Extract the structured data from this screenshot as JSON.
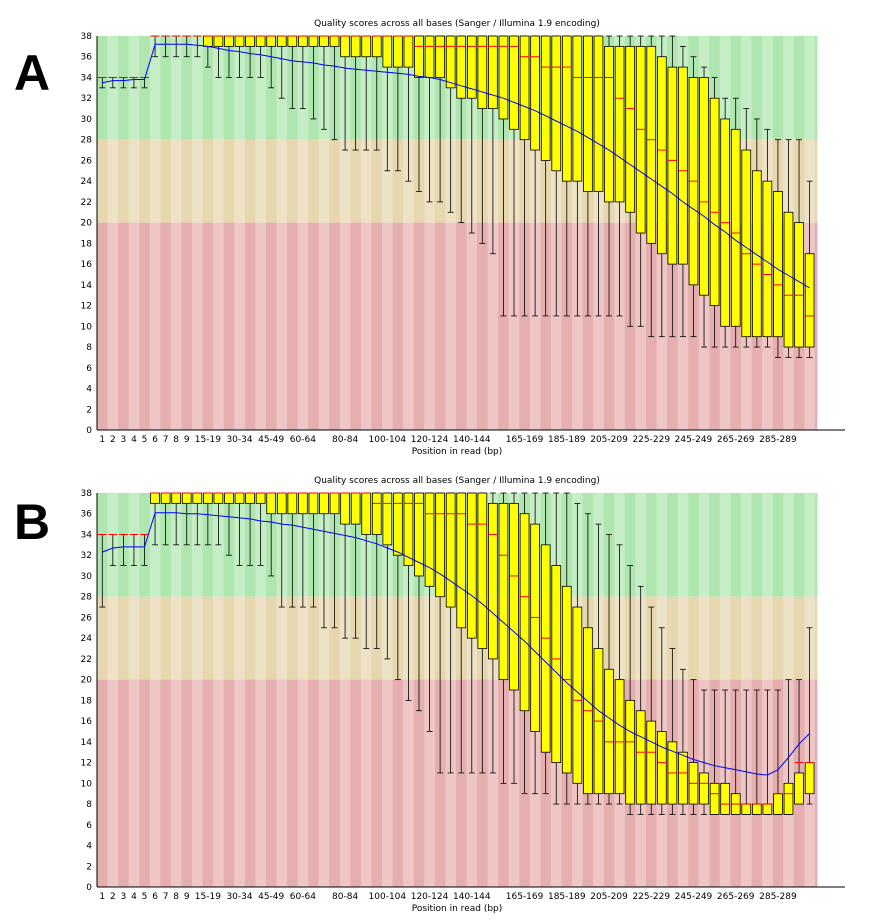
{
  "panels": [
    {
      "label": "A"
    },
    {
      "label": "B"
    }
  ],
  "colors": {
    "green_a": "#afe6af",
    "green_b": "#c6eec6",
    "orange_a": "#e6d7af",
    "orange_b": "#eee2c6",
    "red_a": "#e6afaf",
    "red_b": "#eec6c6",
    "box": "#ffff00",
    "box_edge": "#000000",
    "median": "#ff0000",
    "mean": "#0000ff",
    "whisker": "#000000"
  },
  "chart_data": [
    {
      "type": "boxplot",
      "panel": "A",
      "title": "Quality scores across all bases (Sanger / Illumina 1.9 encoding)",
      "xlabel": "Position in read (bp)",
      "ylabel": "",
      "ylim": [
        0,
        38
      ],
      "yticks": [
        0,
        2,
        4,
        6,
        8,
        10,
        12,
        14,
        16,
        18,
        20,
        22,
        24,
        26,
        28,
        30,
        32,
        34,
        36,
        38
      ],
      "bands": [
        {
          "from": 28,
          "to": 38,
          "color": "green"
        },
        {
          "from": 20,
          "to": 28,
          "color": "orange"
        },
        {
          "from": 0,
          "to": 20,
          "color": "red"
        }
      ],
      "categories": [
        "1",
        "2",
        "3",
        "4",
        "5",
        "6",
        "7",
        "8",
        "9",
        "10-14",
        "15-19",
        "20-24",
        "25-29",
        "30-34",
        "35-39",
        "40-44",
        "45-49",
        "50-54",
        "55-59",
        "60-64",
        "65-69",
        "70-74",
        "75-79",
        "80-84",
        "85-89",
        "90-94",
        "95-99",
        "100-104",
        "105-109",
        "110-114",
        "115-119",
        "120-124",
        "125-129",
        "130-134",
        "135-139",
        "140-144",
        "145-149",
        "150-154",
        "155-159",
        "160-164",
        "165-169",
        "170-174",
        "175-179",
        "180-184",
        "185-189",
        "190-194",
        "195-199",
        "200-204",
        "205-209",
        "210-214",
        "215-219",
        "220-224",
        "225-229",
        "230-234",
        "235-239",
        "240-244",
        "245-249",
        "250-254",
        "255-259",
        "260-264",
        "265-269",
        "270-274",
        "275-279",
        "280-284",
        "285-289",
        "290-294",
        "295-299",
        "300-301"
      ],
      "shown_tick_labels": [
        "1",
        "2",
        "3",
        "4",
        "5",
        "6",
        "7",
        "8",
        "9",
        "15-19",
        "30-34",
        "45-49",
        "60-64",
        "80-84",
        "100-104",
        "120-124",
        "140-144",
        "165-169",
        "185-189",
        "205-209",
        "225-229",
        "245-249",
        "265-269",
        "285-289"
      ],
      "series": [
        {
          "name": "lower_whisker",
          "values": [
            33,
            33,
            33,
            33,
            33,
            36,
            36,
            36,
            36,
            36,
            35,
            34,
            34,
            34,
            34,
            34,
            33,
            32,
            31,
            31,
            30,
            29,
            28,
            27,
            27,
            27,
            27,
            25,
            25,
            24,
            23,
            22,
            22,
            21,
            20,
            19,
            18,
            17,
            11,
            11,
            11,
            11,
            11,
            11,
            11,
            11,
            11,
            11,
            11,
            11,
            10,
            10,
            9,
            9,
            9,
            9,
            9,
            8,
            8,
            8,
            8,
            8,
            8,
            8,
            7,
            7,
            7,
            7
          ]
        },
        {
          "name": "q1",
          "values": [
            34,
            34,
            34,
            34,
            34,
            38,
            38,
            38,
            38,
            38,
            37,
            37,
            37,
            37,
            37,
            37,
            37,
            37,
            37,
            37,
            37,
            37,
            37,
            36,
            36,
            36,
            36,
            35,
            35,
            35,
            34,
            34,
            34,
            33,
            32,
            32,
            31,
            31,
            30,
            29,
            28,
            27,
            26,
            25,
            24,
            24,
            23,
            23,
            22,
            22,
            21,
            19,
            18,
            17,
            16,
            16,
            14,
            13,
            12,
            10,
            10,
            9,
            9,
            9,
            9,
            8,
            8,
            8
          ]
        },
        {
          "name": "median",
          "values": [
            34,
            34,
            34,
            34,
            34,
            38,
            38,
            38,
            38,
            38,
            38,
            38,
            38,
            38,
            38,
            38,
            38,
            38,
            38,
            38,
            38,
            38,
            38,
            38,
            38,
            38,
            38,
            38,
            38,
            38,
            37,
            37,
            37,
            37,
            37,
            37,
            37,
            37,
            37,
            37,
            36,
            36,
            35,
            35,
            35,
            34,
            34,
            34,
            34,
            32,
            31,
            29,
            28,
            27,
            26,
            25,
            24,
            22,
            21,
            20,
            19,
            17,
            16,
            15,
            14,
            13,
            13,
            11
          ]
        },
        {
          "name": "q3",
          "values": [
            34,
            34,
            34,
            34,
            34,
            38,
            38,
            38,
            38,
            38,
            38,
            38,
            38,
            38,
            38,
            38,
            38,
            38,
            38,
            38,
            38,
            38,
            38,
            38,
            38,
            38,
            38,
            38,
            38,
            38,
            38,
            38,
            38,
            38,
            38,
            38,
            38,
            38,
            38,
            38,
            38,
            38,
            38,
            38,
            38,
            38,
            38,
            38,
            37,
            37,
            37,
            37,
            37,
            36,
            35,
            35,
            34,
            34,
            32,
            30,
            29,
            27,
            25,
            24,
            23,
            21,
            20,
            17
          ]
        },
        {
          "name": "upper_whisker",
          "values": [
            34,
            34,
            34,
            34,
            34,
            38,
            38,
            38,
            38,
            38,
            38,
            38,
            38,
            38,
            38,
            38,
            38,
            38,
            38,
            38,
            38,
            38,
            38,
            38,
            38,
            38,
            38,
            38,
            38,
            38,
            38,
            38,
            38,
            38,
            38,
            38,
            38,
            38,
            38,
            38,
            38,
            38,
            38,
            38,
            38,
            38,
            38,
            38,
            38,
            38,
            38,
            38,
            38,
            38,
            38,
            37,
            36,
            35,
            34,
            32,
            32,
            31,
            30,
            29,
            28,
            28,
            28,
            24
          ]
        },
        {
          "name": "mean",
          "values": [
            33.5,
            33.7,
            33.7,
            33.8,
            33.8,
            37.2,
            37.2,
            37.2,
            37.2,
            37.1,
            37.0,
            36.8,
            36.6,
            36.5,
            36.3,
            36.2,
            36.0,
            35.8,
            35.6,
            35.5,
            35.4,
            35.2,
            35.1,
            34.9,
            34.8,
            34.7,
            34.6,
            34.5,
            34.4,
            34.3,
            34.1,
            34.0,
            33.8,
            33.5,
            33.2,
            32.9,
            32.6,
            32.3,
            32.0,
            31.6,
            31.2,
            30.8,
            30.3,
            29.8,
            29.3,
            28.8,
            28.2,
            27.6,
            27.0,
            26.3,
            25.6,
            24.9,
            24.2,
            23.5,
            22.8,
            22.0,
            21.3,
            20.6,
            19.8,
            19.1,
            18.3,
            17.6,
            16.9,
            16.2,
            15.5,
            14.9,
            14.3,
            13.7
          ]
        }
      ]
    },
    {
      "type": "boxplot",
      "panel": "B",
      "title": "Quality scores across all bases (Sanger / Illumina 1.9 encoding)",
      "xlabel": "Position in read (bp)",
      "ylabel": "",
      "ylim": [
        0,
        38
      ],
      "yticks": [
        0,
        2,
        4,
        6,
        8,
        10,
        12,
        14,
        16,
        18,
        20,
        22,
        24,
        26,
        28,
        30,
        32,
        34,
        36,
        38
      ],
      "bands": [
        {
          "from": 28,
          "to": 38,
          "color": "green"
        },
        {
          "from": 20,
          "to": 28,
          "color": "orange"
        },
        {
          "from": 0,
          "to": 20,
          "color": "red"
        }
      ],
      "categories": [
        "1",
        "2",
        "3",
        "4",
        "5",
        "6",
        "7",
        "8",
        "9",
        "10-14",
        "15-19",
        "20-24",
        "25-29",
        "30-34",
        "35-39",
        "40-44",
        "45-49",
        "50-54",
        "55-59",
        "60-64",
        "65-69",
        "70-74",
        "75-79",
        "80-84",
        "85-89",
        "90-94",
        "95-99",
        "100-104",
        "105-109",
        "110-114",
        "115-119",
        "120-124",
        "125-129",
        "130-134",
        "135-139",
        "140-144",
        "145-149",
        "150-154",
        "155-159",
        "160-164",
        "165-169",
        "170-174",
        "175-179",
        "180-184",
        "185-189",
        "190-194",
        "195-199",
        "200-204",
        "205-209",
        "210-214",
        "215-219",
        "220-224",
        "225-229",
        "230-234",
        "235-239",
        "240-244",
        "245-249",
        "250-254",
        "255-259",
        "260-264",
        "265-269",
        "270-274",
        "275-279",
        "280-284",
        "285-289",
        "290-294",
        "295-299",
        "300-301"
      ],
      "shown_tick_labels": [
        "1",
        "2",
        "3",
        "4",
        "5",
        "6",
        "7",
        "8",
        "9",
        "15-19",
        "30-34",
        "45-49",
        "60-64",
        "80-84",
        "100-104",
        "120-124",
        "140-144",
        "165-169",
        "185-189",
        "205-209",
        "225-229",
        "245-249",
        "265-269",
        "285-289"
      ],
      "series": [
        {
          "name": "lower_whisker",
          "values": [
            27,
            31,
            31,
            31,
            31,
            33,
            33,
            33,
            33,
            33,
            33,
            33,
            32,
            31,
            31,
            31,
            30,
            27,
            27,
            27,
            27,
            25,
            25,
            24,
            24,
            23,
            23,
            22,
            20,
            18,
            17,
            15,
            11,
            11,
            11,
            11,
            11,
            11,
            10,
            10,
            9,
            9,
            9,
            8,
            8,
            8,
            8,
            8,
            8,
            8,
            7,
            7,
            7,
            7,
            7,
            7,
            7,
            7,
            7,
            7,
            7,
            7,
            7,
            7,
            7,
            7,
            8,
            8
          ]
        },
        {
          "name": "q1",
          "values": [
            34,
            34,
            34,
            34,
            34,
            37,
            37,
            37,
            37,
            37,
            37,
            37,
            37,
            37,
            37,
            37,
            36,
            36,
            36,
            36,
            36,
            36,
            36,
            35,
            35,
            34,
            34,
            33,
            32,
            31,
            30,
            29,
            28,
            27,
            25,
            24,
            23,
            22,
            20,
            19,
            17,
            15,
            13,
            12,
            11,
            10,
            9,
            9,
            9,
            9,
            8,
            8,
            8,
            8,
            8,
            8,
            8,
            8,
            7,
            7,
            7,
            7,
            7,
            7,
            7,
            7,
            8,
            9
          ]
        },
        {
          "name": "median",
          "values": [
            34,
            34,
            34,
            34,
            34,
            38,
            38,
            38,
            38,
            38,
            38,
            38,
            38,
            38,
            38,
            38,
            38,
            38,
            38,
            38,
            38,
            38,
            38,
            38,
            38,
            38,
            37,
            37,
            37,
            37,
            37,
            36,
            36,
            36,
            36,
            35,
            35,
            34,
            32,
            30,
            28,
            26,
            24,
            22,
            20,
            18,
            17,
            16,
            14,
            14,
            14,
            13,
            13,
            12,
            11,
            11,
            10,
            10,
            9,
            8,
            8,
            8,
            8,
            8,
            9,
            9,
            12,
            12
          ]
        },
        {
          "name": "q3",
          "values": [
            34,
            34,
            34,
            34,
            34,
            38,
            38,
            38,
            38,
            38,
            38,
            38,
            38,
            38,
            38,
            38,
            38,
            38,
            38,
            38,
            38,
            38,
            38,
            38,
            38,
            38,
            38,
            38,
            38,
            38,
            38,
            38,
            38,
            38,
            38,
            38,
            38,
            37,
            37,
            37,
            36,
            35,
            33,
            31,
            29,
            27,
            25,
            23,
            21,
            20,
            18,
            17,
            16,
            15,
            14,
            13,
            12,
            11,
            10,
            10,
            9,
            8,
            8,
            8,
            9,
            10,
            11,
            12
          ]
        },
        {
          "name": "upper_whisker",
          "values": [
            34,
            34,
            34,
            34,
            34,
            38,
            38,
            38,
            38,
            38,
            38,
            38,
            38,
            38,
            38,
            38,
            38,
            38,
            38,
            38,
            38,
            38,
            38,
            38,
            38,
            38,
            38,
            38,
            38,
            38,
            38,
            38,
            38,
            38,
            38,
            38,
            38,
            38,
            38,
            38,
            38,
            38,
            38,
            38,
            38,
            37,
            36,
            35,
            34,
            33,
            31,
            29,
            27,
            25,
            23,
            21,
            20,
            19,
            19,
            19,
            19,
            19,
            19,
            19,
            19,
            20,
            20,
            25
          ]
        },
        {
          "name": "mean",
          "values": [
            32.3,
            32.7,
            32.8,
            32.8,
            32.8,
            36.1,
            36.1,
            36.1,
            36.0,
            36.0,
            35.9,
            35.8,
            35.7,
            35.6,
            35.5,
            35.3,
            35.2,
            35.0,
            34.9,
            34.7,
            34.5,
            34.3,
            34.1,
            33.9,
            33.7,
            33.4,
            33.1,
            32.7,
            32.3,
            31.8,
            31.3,
            30.8,
            30.2,
            29.5,
            28.8,
            28.1,
            27.3,
            26.4,
            25.5,
            24.6,
            23.7,
            22.7,
            21.7,
            20.7,
            19.7,
            18.8,
            17.9,
            17.0,
            16.3,
            15.6,
            15.0,
            14.5,
            14.0,
            13.5,
            13.1,
            12.7,
            12.3,
            12.0,
            11.7,
            11.5,
            11.3,
            11.1,
            10.9,
            10.8,
            11.3,
            12.5,
            13.8,
            14.8
          ]
        }
      ]
    }
  ]
}
